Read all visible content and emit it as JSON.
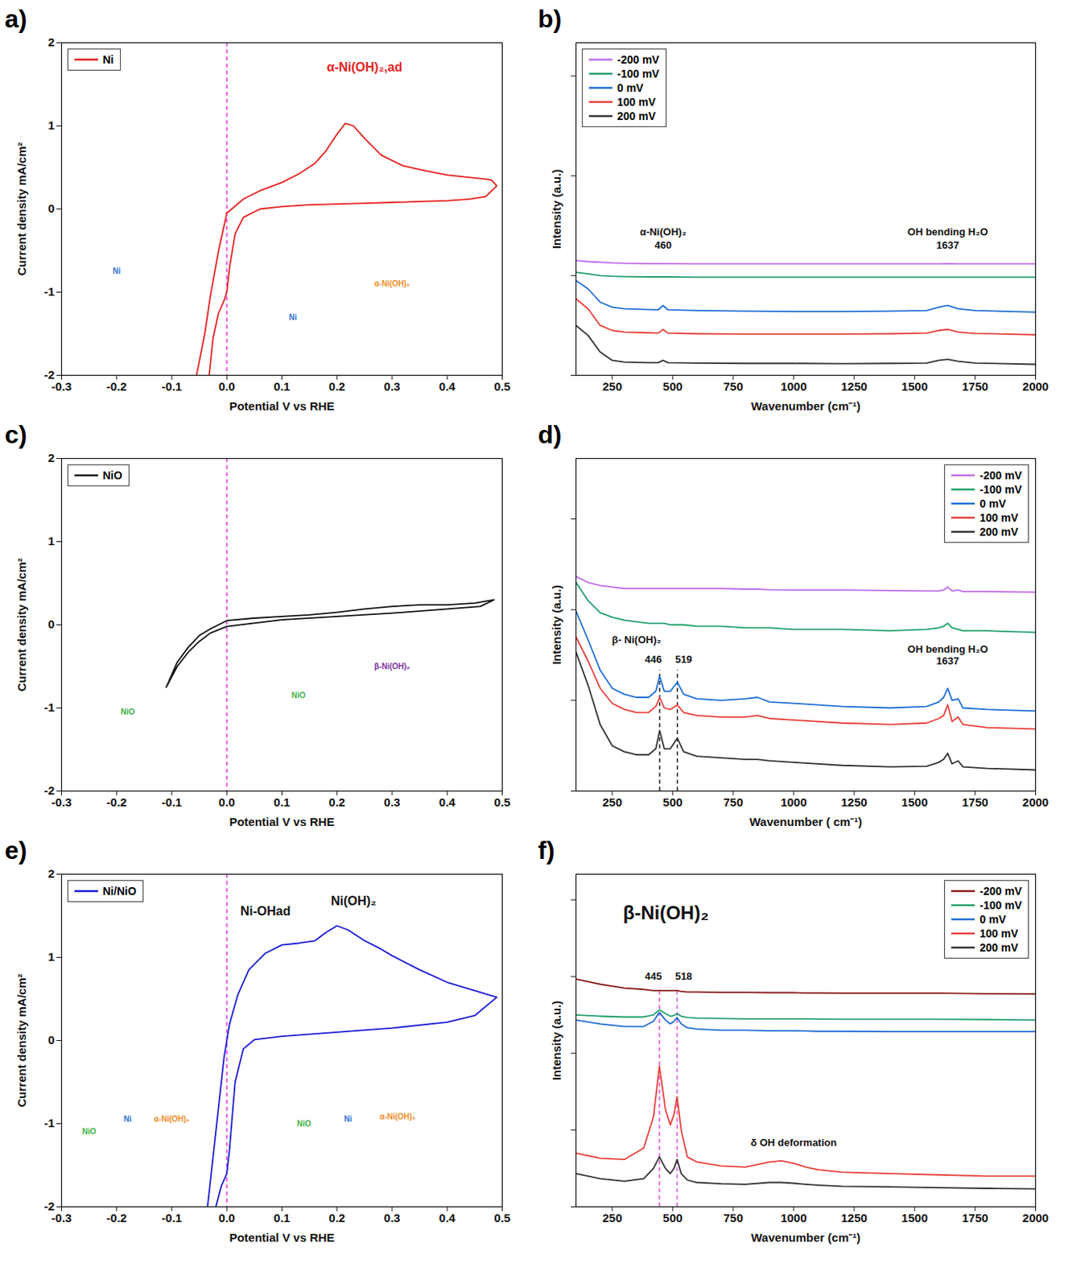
{
  "chart_data": [
    {
      "type": "line",
      "panel_label": "a)",
      "x_label": "Potential V vs RHE",
      "y_label": "Current density mA/cm²",
      "xlim": [
        -0.3,
        0.5
      ],
      "xticks": [
        -0.3,
        -0.2,
        -0.1,
        {
          "value": 0,
          "label": "0.0"
        },
        0.1,
        0.2,
        0.3,
        0.4,
        0.5
      ],
      "ylim": [
        -2,
        2
      ],
      "yticks": [
        -2,
        -1,
        0,
        1,
        2
      ],
      "legend": "top-left",
      "vline": 0,
      "series": [
        {
          "name": "Ni",
          "color": "#e8201e",
          "x": [
            -0.055,
            -0.04,
            -0.03,
            -0.015,
            0,
            0.03,
            0.06,
            0.1,
            0.13,
            0.16,
            0.18,
            0.2,
            0.215,
            0.23,
            0.25,
            0.28,
            0.32,
            0.36,
            0.4,
            0.44,
            0.47,
            0.48,
            0.49,
            0.47,
            0.44,
            0.4,
            0.35,
            0.3,
            0.25,
            0.2,
            0.15,
            0.1,
            0.06,
            0.03,
            0.015,
            0.005,
            0,
            -0.005,
            -0.015,
            -0.025,
            -0.032
          ],
          "values": [
            -2,
            -1.5,
            -1.05,
            -0.5,
            -0.05,
            0.12,
            0.22,
            0.32,
            0.42,
            0.55,
            0.7,
            0.9,
            1.03,
            1.0,
            0.85,
            0.65,
            0.52,
            0.46,
            0.41,
            0.38,
            0.36,
            0.35,
            0.28,
            0.15,
            0.12,
            0.1,
            0.09,
            0.08,
            0.07,
            0.06,
            0.05,
            0.03,
            0.0,
            -0.1,
            -0.3,
            -0.7,
            -1.0,
            -1.1,
            -1.25,
            -1.55,
            -2
          ]
        }
      ],
      "annotations": [
        {
          "text": "α-Ni(OH)₂,ad",
          "x": 0.25,
          "y": 1.7,
          "color": "#e8201e"
        }
      ],
      "inset_labels": [
        {
          "text": "Ni",
          "x": -0.2,
          "y": -0.75,
          "color": "#2a6fd1"
        },
        {
          "text": "Ni",
          "x": 0.12,
          "y": -1.3,
          "color": "#2a6fd1"
        },
        {
          "text": "α-Ni(OH)₂",
          "x": 0.3,
          "y": -0.9,
          "color": "#f08a24"
        }
      ]
    },
    {
      "type": "line",
      "panel_label": "b)",
      "x_label": "Wavenumber (cm⁻¹)",
      "y_label": "Intensity (a.u.)",
      "xlim": [
        100,
        2000
      ],
      "xticks": [
        250,
        500,
        750,
        1000,
        1250,
        1500,
        1750,
        2000
      ],
      "ylim": [
        0,
        10
      ],
      "yticks": [
        0,
        3,
        6,
        9
      ],
      "tick_labels": "x",
      "legend": "top-left",
      "x": [
        100,
        150,
        200,
        250,
        300,
        400,
        440,
        460,
        480,
        600,
        800,
        1000,
        1200,
        1400,
        1550,
        1600,
        1637,
        1680,
        1750,
        2000
      ],
      "series": [
        {
          "name": "-200 mV",
          "color": "#c06cf0",
          "values": [
            3.45,
            3.42,
            3.4,
            3.38,
            3.37,
            3.36,
            3.36,
            3.36,
            3.36,
            3.35,
            3.35,
            3.35,
            3.35,
            3.35,
            3.35,
            3.35,
            3.36,
            3.35,
            3.35,
            3.35
          ]
        },
        {
          "name": "-100 mV",
          "color": "#22a06b",
          "values": [
            3.1,
            3.05,
            3.0,
            2.98,
            2.97,
            2.96,
            2.96,
            2.96,
            2.96,
            2.95,
            2.95,
            2.95,
            2.95,
            2.95,
            2.95,
            2.95,
            2.95,
            2.95,
            2.95,
            2.95
          ]
        },
        {
          "name": "0 mV",
          "color": "#1f6fd6",
          "values": [
            2.85,
            2.6,
            2.2,
            2.05,
            2.0,
            1.98,
            1.97,
            2.1,
            1.97,
            1.95,
            1.93,
            1.92,
            1.92,
            1.93,
            1.95,
            2.05,
            2.1,
            2.0,
            1.95,
            1.9
          ]
        },
        {
          "name": "100 mV",
          "color": "#e8403a",
          "values": [
            2.3,
            2.0,
            1.5,
            1.35,
            1.3,
            1.28,
            1.27,
            1.38,
            1.27,
            1.25,
            1.24,
            1.24,
            1.24,
            1.25,
            1.27,
            1.35,
            1.38,
            1.3,
            1.26,
            1.22
          ]
        },
        {
          "name": "200 mV",
          "color": "#333333",
          "values": [
            1.5,
            1.2,
            0.7,
            0.45,
            0.4,
            0.38,
            0.38,
            0.45,
            0.38,
            0.37,
            0.36,
            0.36,
            0.35,
            0.36,
            0.37,
            0.45,
            0.48,
            0.42,
            0.37,
            0.33
          ]
        }
      ],
      "annotations": [
        {
          "text": "α-Ni(OH)₂",
          "x": 460,
          "y": 4.3
        },
        {
          "text": "460",
          "x": 460,
          "y": 3.9
        },
        {
          "text": "OH bending H₂O",
          "x": 1637,
          "y": 4.3
        },
        {
          "text": "1637",
          "x": 1637,
          "y": 3.9
        }
      ]
    },
    {
      "type": "line",
      "panel_label": "c)",
      "x_label": "Potential V vs RHE",
      "y_label": "Current density mA/cm²",
      "xlim": [
        -0.3,
        0.5
      ],
      "xticks": [
        -0.3,
        -0.2,
        -0.1,
        {
          "value": 0,
          "label": "0.0"
        },
        0.1,
        0.2,
        0.3,
        0.4,
        0.5
      ],
      "ylim": [
        -2,
        2
      ],
      "yticks": [
        -2,
        -1,
        0,
        1,
        2
      ],
      "legend": "top-left",
      "vline": 0,
      "series": [
        {
          "name": "NiO",
          "color": "#111111",
          "x": [
            -0.11,
            -0.09,
            -0.07,
            -0.05,
            -0.03,
            0,
            0.05,
            0.1,
            0.15,
            0.2,
            0.25,
            0.3,
            0.35,
            0.4,
            0.45,
            0.485,
            0.46,
            0.4,
            0.3,
            0.2,
            0.1,
            0,
            -0.03,
            -0.05,
            -0.07,
            -0.09,
            -0.11
          ],
          "values": [
            -0.75,
            -0.45,
            -0.27,
            -0.13,
            -0.05,
            0.05,
            0.08,
            0.1,
            0.12,
            0.15,
            0.19,
            0.22,
            0.24,
            0.24,
            0.26,
            0.3,
            0.22,
            0.19,
            0.14,
            0.1,
            0.06,
            -0.02,
            -0.1,
            -0.2,
            -0.33,
            -0.5,
            -0.75
          ]
        }
      ],
      "inset_labels": [
        {
          "text": "NiO",
          "x": -0.18,
          "y": -1.05,
          "color": "#3cb043"
        },
        {
          "text": "NiO",
          "x": 0.13,
          "y": -0.85,
          "color": "#3cb043"
        },
        {
          "text": "β-Ni(OH)₂",
          "x": 0.3,
          "y": -0.5,
          "color": "#7b2d9b"
        }
      ]
    },
    {
      "type": "line",
      "panel_label": "d)",
      "x_label": "Wavenumber ( cm⁻¹)",
      "y_label": "Intensity (a.u.)",
      "xlim": [
        100,
        2000
      ],
      "xticks": [
        250,
        500,
        750,
        1000,
        1250,
        1500,
        1750,
        2000
      ],
      "ylim": [
        0,
        11
      ],
      "yticks": [
        0,
        3,
        6,
        9
      ],
      "tick_labels": "x",
      "legend": "top-right",
      "x": [
        100,
        150,
        200,
        250,
        300,
        350,
        400,
        430,
        446,
        465,
        490,
        519,
        545,
        600,
        700,
        800,
        850,
        900,
        1000,
        1200,
        1400,
        1550,
        1600,
        1620,
        1637,
        1655,
        1680,
        1700,
        1800,
        2000
      ],
      "series": [
        {
          "name": "-200 mV",
          "color": "#c06cf0",
          "values": [
            7.1,
            6.9,
            6.8,
            6.75,
            6.7,
            6.7,
            6.7,
            6.7,
            6.7,
            6.7,
            6.7,
            6.7,
            6.7,
            6.7,
            6.7,
            6.68,
            6.68,
            6.66,
            6.65,
            6.65,
            6.63,
            6.62,
            6.62,
            6.65,
            6.75,
            6.62,
            6.65,
            6.6,
            6.6,
            6.58
          ]
        },
        {
          "name": "-100 mV",
          "color": "#22a06b",
          "values": [
            6.9,
            6.3,
            5.9,
            5.75,
            5.65,
            5.6,
            5.55,
            5.55,
            5.55,
            5.55,
            5.5,
            5.5,
            5.5,
            5.45,
            5.45,
            5.4,
            5.4,
            5.4,
            5.35,
            5.35,
            5.3,
            5.35,
            5.4,
            5.45,
            5.55,
            5.4,
            5.35,
            5.3,
            5.3,
            5.25
          ]
        },
        {
          "name": "0 mV",
          "color": "#1f6fd6",
          "values": [
            5.95,
            5.0,
            4.0,
            3.4,
            3.2,
            3.1,
            3.1,
            3.3,
            3.8,
            3.3,
            3.3,
            3.6,
            3.2,
            3.05,
            3.0,
            3.05,
            3.1,
            2.95,
            2.9,
            2.8,
            2.75,
            2.8,
            2.95,
            3.1,
            3.4,
            3.0,
            3.05,
            2.75,
            2.7,
            2.65
          ]
        },
        {
          "name": "100 mV",
          "color": "#e8403a",
          "values": [
            5.1,
            4.3,
            3.4,
            2.9,
            2.7,
            2.6,
            2.6,
            2.8,
            3.1,
            2.75,
            2.7,
            2.85,
            2.6,
            2.5,
            2.45,
            2.45,
            2.5,
            2.4,
            2.35,
            2.25,
            2.2,
            2.25,
            2.4,
            2.5,
            2.85,
            2.3,
            2.45,
            2.2,
            2.1,
            2.05
          ]
        },
        {
          "name": "200 mV",
          "color": "#333333",
          "values": [
            4.6,
            3.5,
            2.2,
            1.5,
            1.3,
            1.2,
            1.2,
            1.4,
            2.0,
            1.4,
            1.4,
            1.75,
            1.3,
            1.15,
            1.1,
            1.05,
            1.05,
            1.0,
            0.95,
            0.85,
            0.8,
            0.82,
            0.95,
            1.05,
            1.25,
            0.9,
            1.0,
            0.8,
            0.75,
            0.7
          ]
        }
      ],
      "peak_lines": [
        446,
        519
      ],
      "annotations": [
        {
          "text": "β- Ni(OH)₂",
          "x": 350,
          "y": 5.0
        },
        {
          "text": "446",
          "x": 420,
          "y": 4.35
        },
        {
          "text": "519",
          "x": 545,
          "y": 4.35
        },
        {
          "text": "OH bending H₂O",
          "x": 1637,
          "y": 4.7
        },
        {
          "text": "1637",
          "x": 1637,
          "y": 4.3
        }
      ]
    },
    {
      "type": "line",
      "panel_label": "e)",
      "x_label": "Potential V vs RHE",
      "y_label": "Current density mA/cm²",
      "xlim": [
        -0.3,
        0.5
      ],
      "xticks": [
        -0.3,
        -0.2,
        -0.1,
        {
          "value": 0,
          "label": "0.0"
        },
        0.1,
        0.2,
        0.3,
        0.4,
        0.5
      ],
      "ylim": [
        -2,
        2
      ],
      "yticks": [
        -2,
        -1,
        0,
        1,
        2
      ],
      "legend": "top-left",
      "vline": 0,
      "series": [
        {
          "name": "Ni/NiO",
          "color": "#1a1ad6",
          "x": [
            -0.035,
            -0.025,
            -0.015,
            -0.005,
            0.005,
            0.02,
            0.04,
            0.07,
            0.1,
            0.13,
            0.16,
            0.18,
            0.2,
            0.22,
            0.25,
            0.28,
            0.3,
            0.35,
            0.4,
            0.45,
            0.49,
            0.45,
            0.4,
            0.3,
            0.2,
            0.1,
            0.05,
            0.03,
            0.015,
            0.005,
            0,
            -0.01,
            -0.02
          ],
          "values": [
            -2,
            -1.4,
            -0.8,
            -0.2,
            0.2,
            0.55,
            0.85,
            1.05,
            1.15,
            1.17,
            1.2,
            1.3,
            1.38,
            1.33,
            1.2,
            1.1,
            1.02,
            0.85,
            0.7,
            0.6,
            0.52,
            0.3,
            0.22,
            0.15,
            0.1,
            0.05,
            0.01,
            -0.1,
            -0.5,
            -1.3,
            -1.6,
            -1.75,
            -2
          ]
        }
      ],
      "annotations": [
        {
          "text": "Ni-OHad",
          "x": 0.07,
          "y": 1.55
        },
        {
          "text": "Ni(OH)₂",
          "x": 0.23,
          "y": 1.68
        }
      ],
      "inset_labels": [
        {
          "text": "NiO",
          "x": -0.25,
          "y": -1.1,
          "color": "#3cb043"
        },
        {
          "text": "Ni",
          "x": -0.18,
          "y": -0.95,
          "color": "#2a6fd1"
        },
        {
          "text": "α-Ni(OH)₂",
          "x": -0.1,
          "y": -0.95,
          "color": "#f08a24"
        },
        {
          "text": "NiO",
          "x": 0.14,
          "y": -1.0,
          "color": "#3cb043"
        },
        {
          "text": "Ni",
          "x": 0.22,
          "y": -0.95,
          "color": "#2a6fd1"
        },
        {
          "text": "α-Ni(OH)₂",
          "x": 0.31,
          "y": -0.92,
          "color": "#f08a24"
        }
      ]
    },
    {
      "type": "line",
      "panel_label": "f)",
      "title": "β-Ni(OH)₂",
      "x_label": "Wavenumber (cm⁻¹)",
      "y_label": "Intensity (a.u.)",
      "xlim": [
        100,
        2000
      ],
      "xticks": [
        250,
        500,
        750,
        1000,
        1250,
        1500,
        1750,
        2000
      ],
      "ylim": [
        0,
        13
      ],
      "yticks": [
        0,
        3,
        6,
        9,
        12
      ],
      "tick_labels": "x",
      "legend": "top-right",
      "x": [
        100,
        200,
        300,
        380,
        420,
        445,
        470,
        490,
        505,
        518,
        535,
        560,
        600,
        700,
        800,
        900,
        950,
        1000,
        1050,
        1100,
        1200,
        1400,
        1600,
        1800,
        2000
      ],
      "series": [
        {
          "name": "-200 mV",
          "color": "#8b1a1a",
          "values": [
            8.9,
            8.7,
            8.55,
            8.5,
            8.45,
            8.45,
            8.45,
            8.45,
            8.45,
            8.45,
            8.42,
            8.4,
            8.4,
            8.38,
            8.38,
            8.37,
            8.37,
            8.37,
            8.36,
            8.36,
            8.35,
            8.35,
            8.35,
            8.33,
            8.32
          ]
        },
        {
          "name": "-100 mV",
          "color": "#22a06b",
          "values": [
            7.5,
            7.45,
            7.42,
            7.42,
            7.5,
            7.7,
            7.55,
            7.45,
            7.48,
            7.55,
            7.45,
            7.4,
            7.38,
            7.36,
            7.35,
            7.35,
            7.35,
            7.35,
            7.35,
            7.34,
            7.33,
            7.33,
            7.33,
            7.32,
            7.3
          ]
        },
        {
          "name": "0 mV",
          "color": "#1f6fd6",
          "values": [
            7.3,
            7.15,
            7.05,
            7.05,
            7.25,
            7.6,
            7.3,
            7.15,
            7.25,
            7.4,
            7.15,
            7.0,
            6.95,
            6.9,
            6.9,
            6.88,
            6.88,
            6.88,
            6.87,
            6.86,
            6.86,
            6.85,
            6.85,
            6.85,
            6.85
          ]
        },
        {
          "name": "100 mV",
          "color": "#e8403a",
          "values": [
            2.1,
            1.9,
            1.85,
            2.3,
            3.5,
            5.5,
            3.8,
            3.2,
            3.6,
            4.3,
            3.0,
            1.95,
            1.75,
            1.6,
            1.55,
            1.75,
            1.8,
            1.7,
            1.55,
            1.45,
            1.35,
            1.3,
            1.25,
            1.2,
            1.2
          ]
        },
        {
          "name": "200 mV",
          "color": "#333333",
          "values": [
            1.3,
            1.1,
            1.0,
            1.1,
            1.5,
            1.95,
            1.5,
            1.3,
            1.5,
            1.85,
            1.3,
            1.05,
            0.95,
            0.9,
            0.88,
            0.95,
            0.95,
            0.92,
            0.88,
            0.85,
            0.8,
            0.78,
            0.75,
            0.72,
            0.7
          ]
        }
      ],
      "peak_lines": [
        445,
        518
      ],
      "annotations": [
        {
          "text": "445",
          "x": 420,
          "y": 9.0
        },
        {
          "text": "518",
          "x": 545,
          "y": 9.0
        },
        {
          "text": "δ OH deformation",
          "x": 1000,
          "y": 2.5
        }
      ]
    }
  ]
}
